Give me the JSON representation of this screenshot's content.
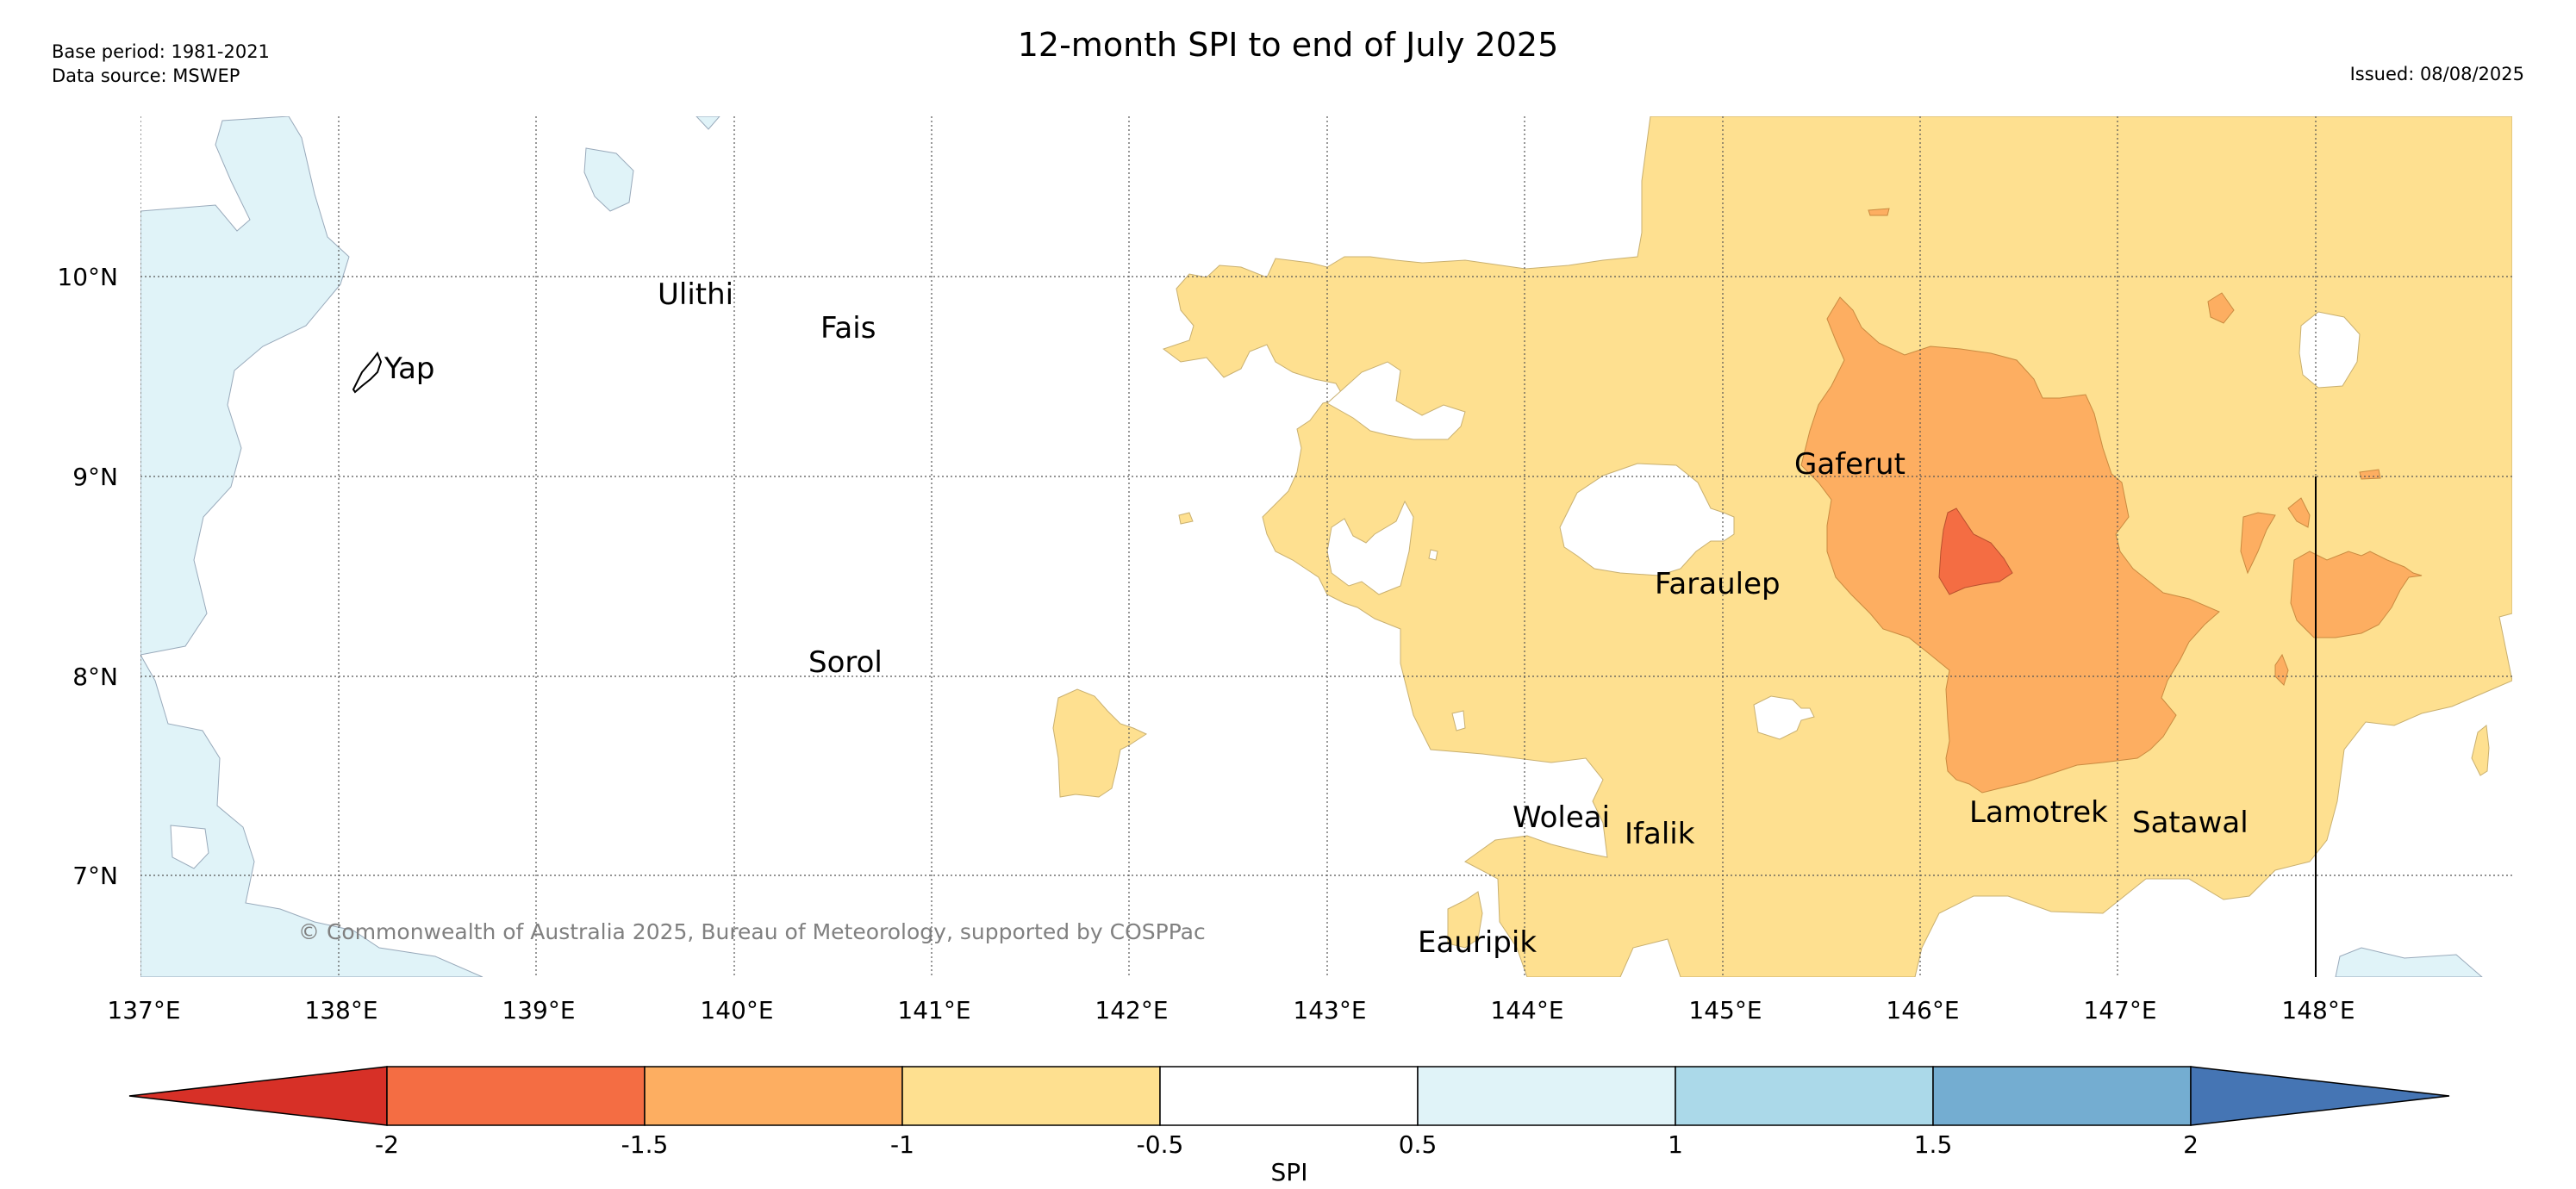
{
  "header": {
    "base_period": "Base period: 1981-2021",
    "data_source": "Data source: MSWEP",
    "title": "12-month SPI to end of July 2025",
    "issued": "Issued: 08/08/2025"
  },
  "map": {
    "lon_range": [
      137,
      149
    ],
    "lat_range": [
      6.5,
      10.8
    ],
    "lon_ticks": [
      "137°E",
      "138°E",
      "139°E",
      "140°E",
      "141°E",
      "142°E",
      "143°E",
      "144°E",
      "145°E",
      "146°E",
      "147°E",
      "148°E"
    ],
    "lat_ticks": [
      "7°N",
      "8°N",
      "9°N",
      "10°N"
    ],
    "gridlines": "on",
    "places": [
      {
        "name": "Ulithi",
        "lon": 139.8,
        "lat": 10.0
      },
      {
        "name": "Fais",
        "lon": 140.5,
        "lat": 9.8
      },
      {
        "name": "Yap",
        "lon": 138.15,
        "lat": 9.55
      },
      {
        "name": "Sorol",
        "lon": 140.4,
        "lat": 8.1
      },
      {
        "name": "Gaferut",
        "lon": 145.35,
        "lat": 9.1
      },
      {
        "name": "Faraulep",
        "lon": 144.65,
        "lat": 8.5
      },
      {
        "name": "Woleai",
        "lon": 143.9,
        "lat": 7.35
      },
      {
        "name": "Ifalik",
        "lon": 144.45,
        "lat": 7.25
      },
      {
        "name": "Lamotrek",
        "lon": 146.25,
        "lat": 7.38
      },
      {
        "name": "Satawal",
        "lon": 147.05,
        "lat": 7.35
      },
      {
        "name": "Eauripik",
        "lon": 143.45,
        "lat": 6.7
      }
    ],
    "copyright": "© Commonwealth of Australia 2025, Bureau of Meteorology, supported by COSPPac"
  },
  "colorbar": {
    "label": "SPI",
    "ticks": [
      "-2",
      "-1.5",
      "-1",
      "-0.5",
      "0.5",
      "1",
      "1.5",
      "2"
    ],
    "colors": [
      "#d73027",
      "#f46d43",
      "#fdae61",
      "#fee090",
      "#ffffff",
      "#e0f3f8",
      "#abd9e9",
      "#74add1",
      "#4575b4"
    ]
  }
}
